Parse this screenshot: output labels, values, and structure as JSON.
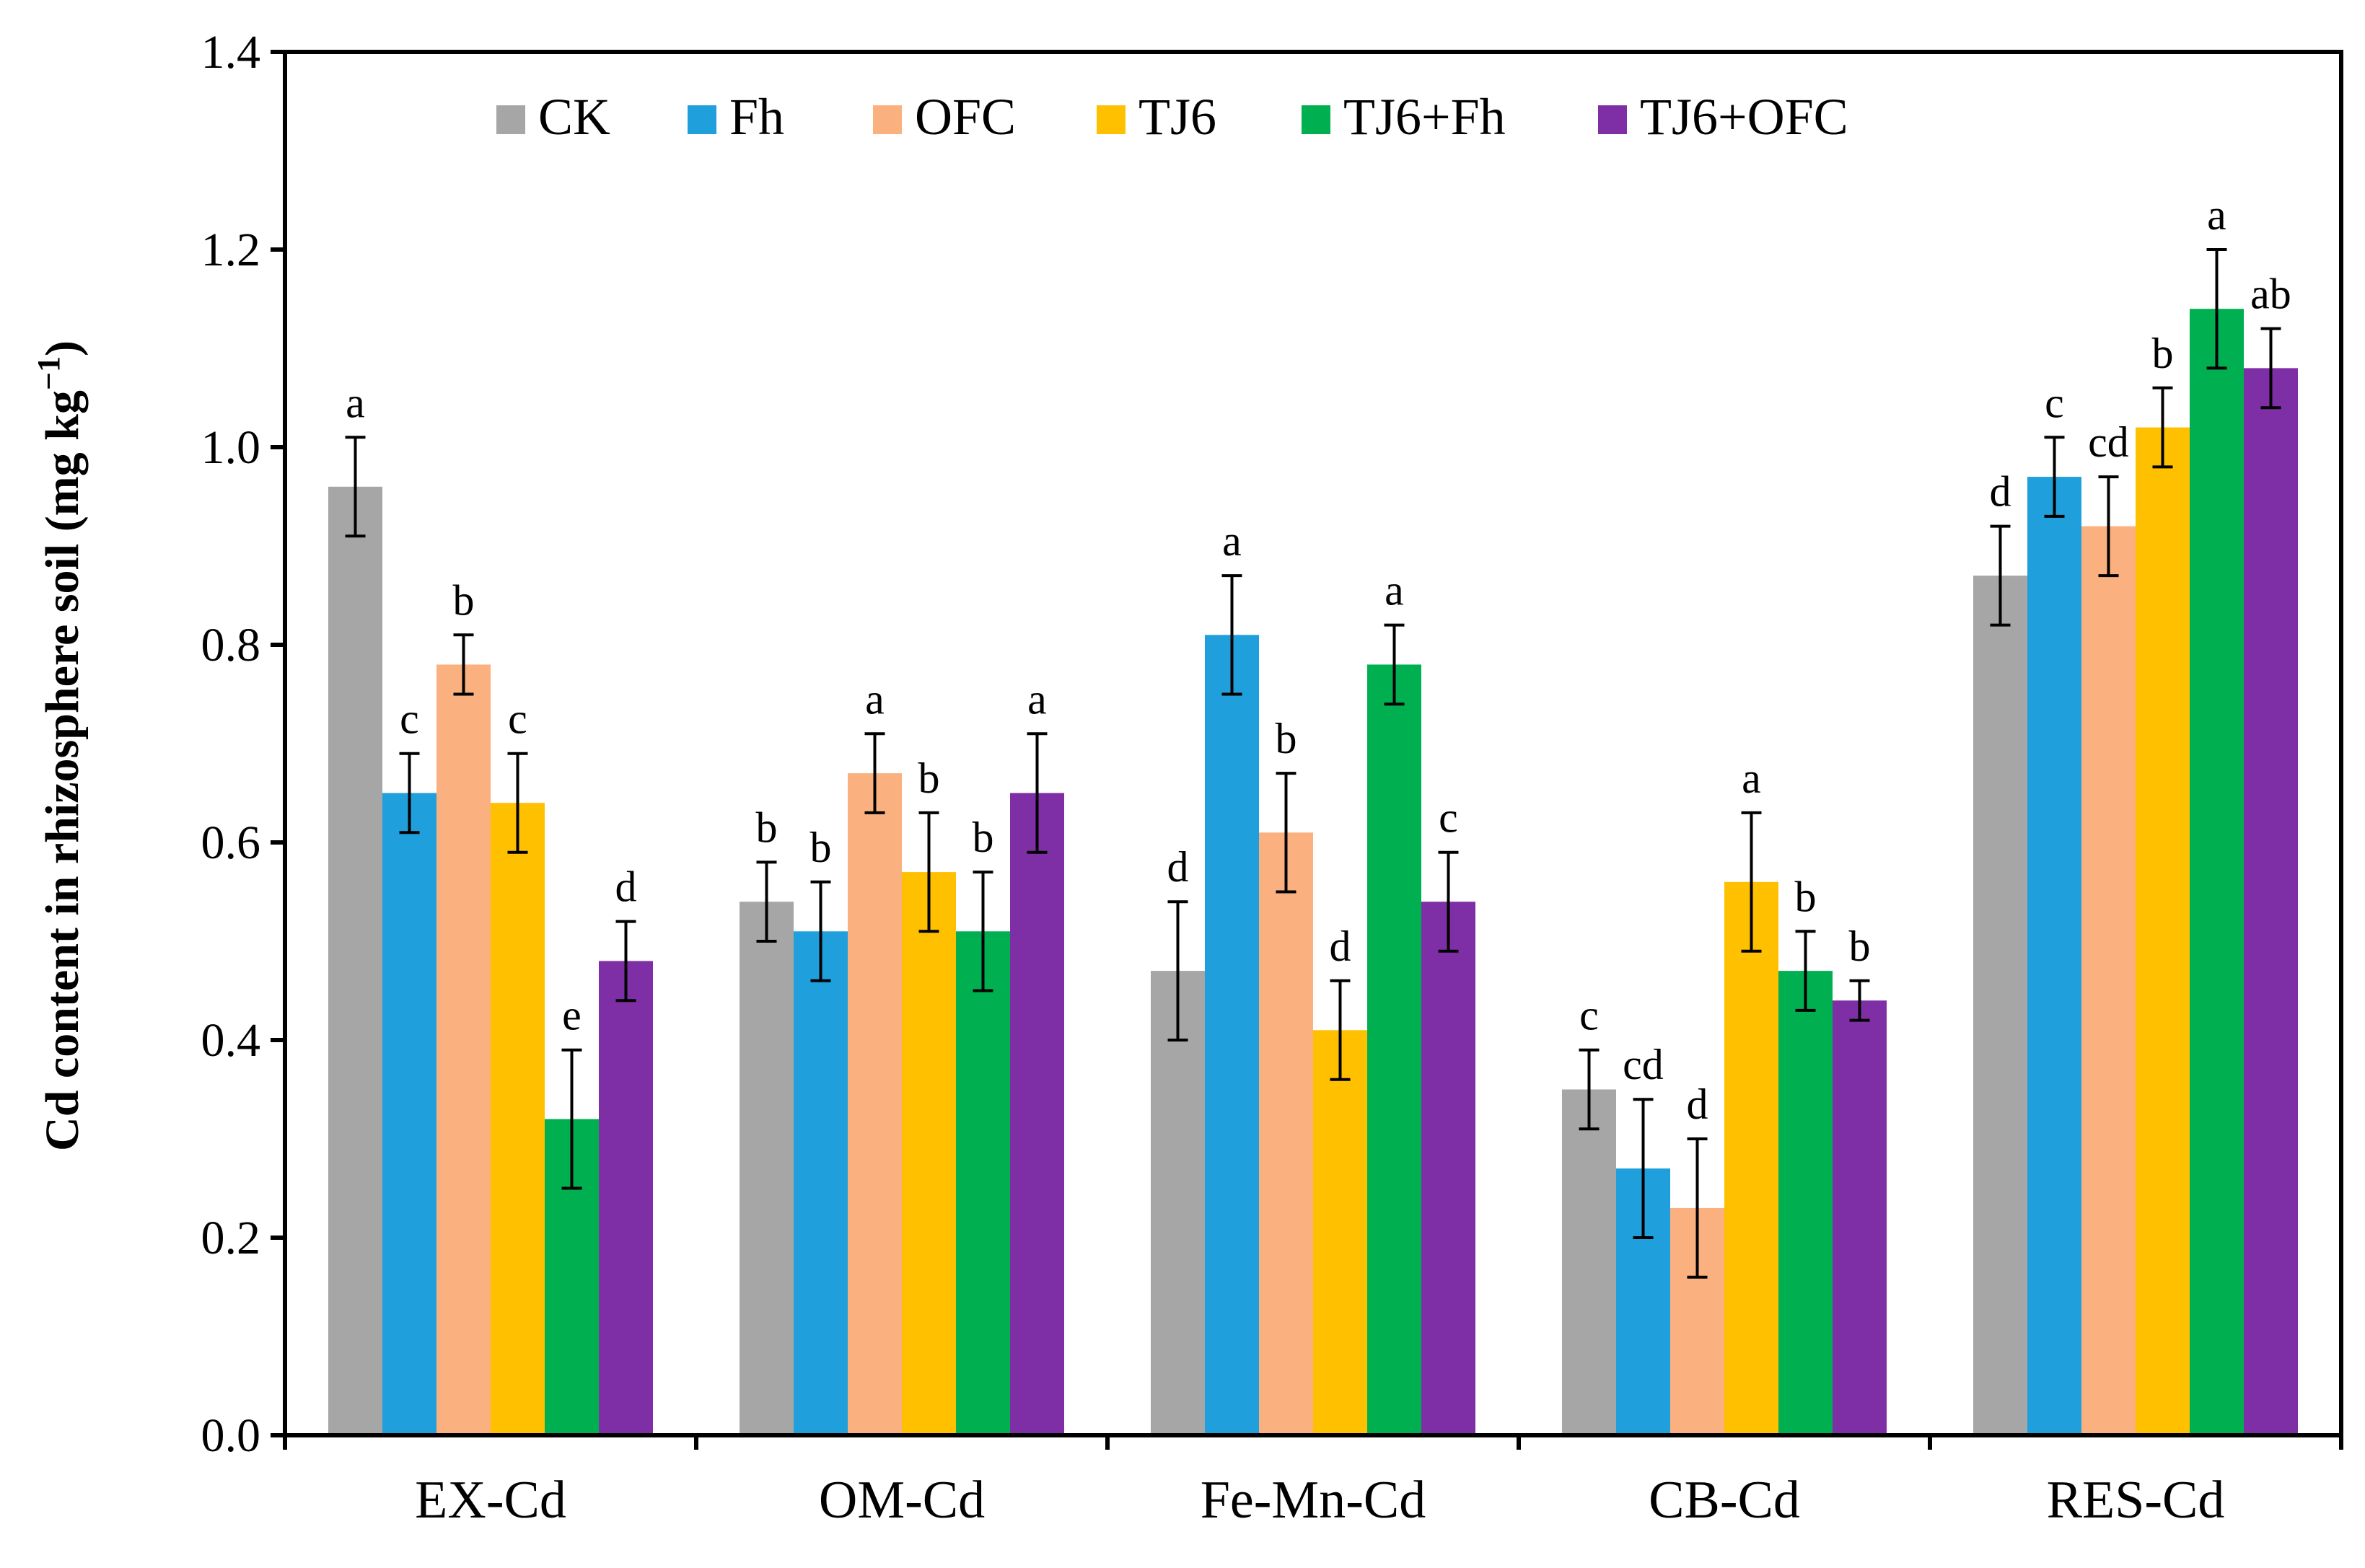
{
  "chart_data": {
    "type": "bar",
    "title": "",
    "xlabel": "",
    "ylabel": "Cd content in rhizosphere soil (mg kg",
    "ylabel_superscript": "−1",
    "ylabel_suffix": ")",
    "ylim": [
      0,
      1.4
    ],
    "yticks": [
      "0.0",
      "0.2",
      "0.4",
      "0.6",
      "0.8",
      "1.0",
      "1.2",
      "1.4"
    ],
    "grid": false,
    "legend_position": "top",
    "categories": [
      "EX-Cd",
      "OM-Cd",
      "Fe-Mn-Cd",
      "CB-Cd",
      "RES-Cd"
    ],
    "series": [
      {
        "name": "CK",
        "color": "#A6A6A6",
        "values": [
          0.96,
          0.54,
          0.47,
          0.35,
          0.87
        ],
        "errors": [
          0.05,
          0.04,
          0.07,
          0.04,
          0.05
        ],
        "labels": [
          "a",
          "b",
          "d",
          "c",
          "d"
        ]
      },
      {
        "name": "Fh",
        "color": "#1F9FDB",
        "values": [
          0.65,
          0.51,
          0.81,
          0.27,
          0.97
        ],
        "errors": [
          0.04,
          0.05,
          0.06,
          0.07,
          0.04
        ],
        "labels": [
          "c",
          "b",
          "a",
          "cd",
          "c"
        ]
      },
      {
        "name": "OFC",
        "color": "#FBB07F",
        "values": [
          0.78,
          0.67,
          0.61,
          0.23,
          0.92
        ],
        "errors": [
          0.03,
          0.04,
          0.06,
          0.07,
          0.05
        ],
        "labels": [
          "b",
          "a",
          "b",
          "d",
          "cd"
        ]
      },
      {
        "name": "TJ6",
        "color": "#FFC000",
        "values": [
          0.64,
          0.57,
          0.41,
          0.56,
          1.02
        ],
        "errors": [
          0.05,
          0.06,
          0.05,
          0.07,
          0.04
        ],
        "labels": [
          "c",
          "b",
          "d",
          "a",
          "b"
        ]
      },
      {
        "name": "TJ6+Fh",
        "color": "#00B050",
        "values": [
          0.32,
          0.51,
          0.78,
          0.47,
          1.14
        ],
        "errors": [
          0.07,
          0.06,
          0.04,
          0.04,
          0.06
        ],
        "labels": [
          "e",
          "b",
          "a",
          "b",
          "a"
        ]
      },
      {
        "name": "TJ6+OFC",
        "color": "#7F2FA6",
        "values": [
          0.48,
          0.65,
          0.54,
          0.44,
          1.08
        ],
        "errors": [
          0.04,
          0.06,
          0.05,
          0.02,
          0.04
        ],
        "labels": [
          "d",
          "a",
          "c",
          "b",
          "ab"
        ]
      }
    ]
  }
}
